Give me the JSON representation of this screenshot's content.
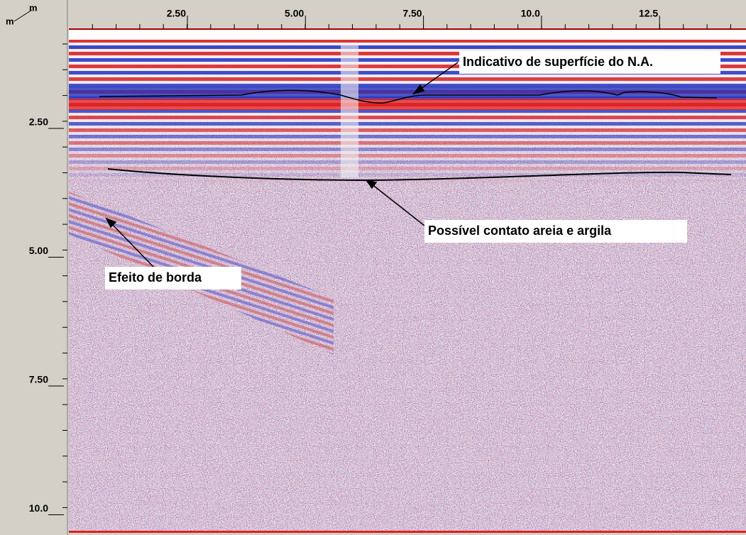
{
  "axis": {
    "x_unit": "m",
    "y_unit": "m",
    "x_labels": [
      "2.50",
      "5.00",
      "7.50",
      "10.0",
      "12.5"
    ],
    "y_labels": [
      "2.50",
      "5.00",
      "7.50",
      "10.0"
    ]
  },
  "annotations": [
    "Indicativo de superfície do N.A.",
    "Possível contato areia e argila",
    "Efeito de borda"
  ]
}
